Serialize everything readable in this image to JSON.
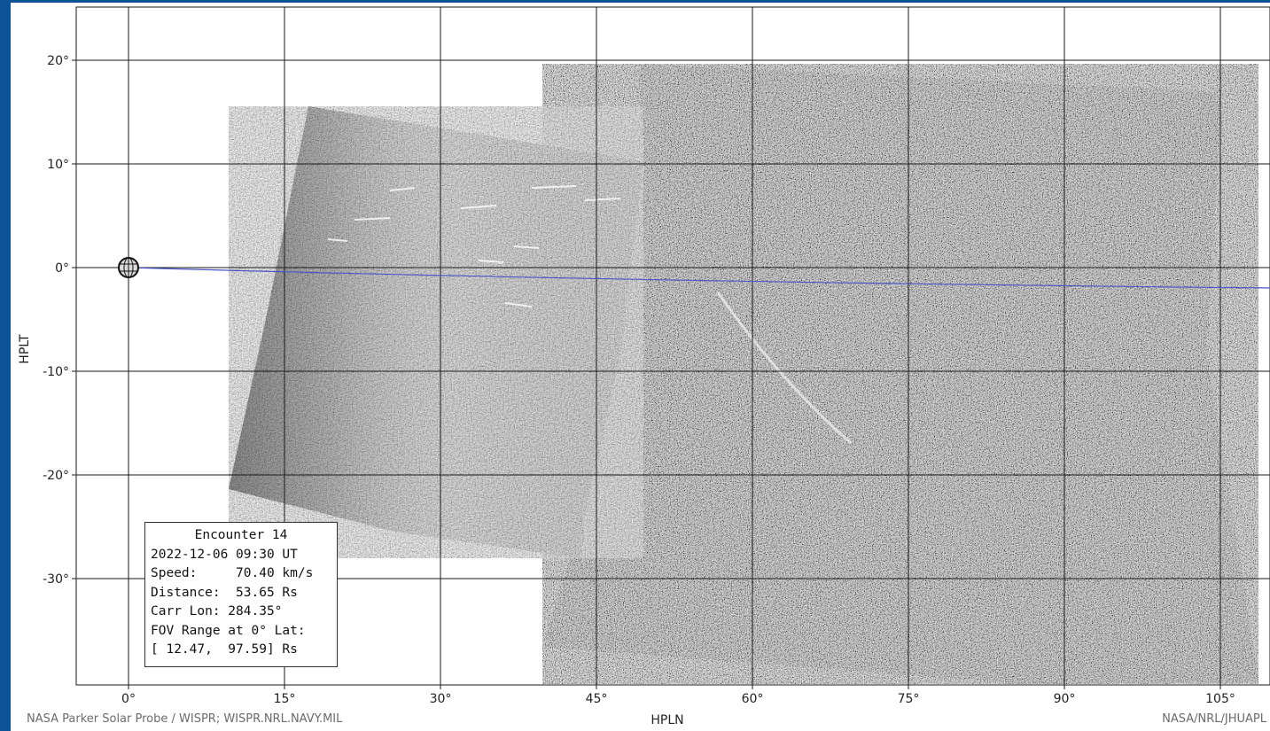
{
  "axes": {
    "xlabel": "HPLN",
    "ylabel": "HPLT",
    "x_ticks": [
      "0°",
      "15°",
      "30°",
      "45°",
      "60°",
      "75°",
      "90°",
      "105°"
    ],
    "y_ticks": [
      "20°",
      "10°",
      "0°",
      "-10°",
      "-20°",
      "-30°"
    ],
    "x_values": [
      0,
      15,
      30,
      45,
      60,
      75,
      90,
      105
    ],
    "y_values": [
      20,
      10,
      0,
      -10,
      -20,
      -30
    ],
    "xlim": [
      -5,
      110
    ],
    "ylim": [
      -40,
      25
    ],
    "grid": true
  },
  "info_box": {
    "title": "Encounter 14",
    "line1": "2022-12-06 09:30 UT",
    "line2": "Speed:     70.40 km/s",
    "line3": "Distance:  53.65 Rs",
    "line4": "Carr Lon: 284.35°",
    "line5": "FOV Range at 0° Lat:",
    "line6": "[ 12.47,  97.59] Rs"
  },
  "credits": {
    "left": "NASA Parker Solar Probe / WISPR; WISPR.NRL.NAVY.MIL",
    "right": "NASA/NRL/JHUAPL"
  },
  "colors": {
    "frame": "#0b5394",
    "ecliptic_line": "#4a55c8",
    "grid": "#1a1a1a"
  },
  "icons": {
    "sun": "sun-icon"
  }
}
